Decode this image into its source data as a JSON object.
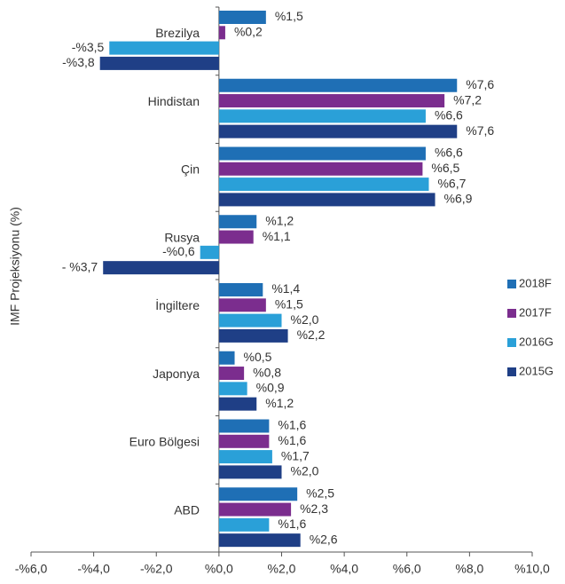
{
  "chart_data": {
    "type": "hbar",
    "y_axis_label": "IMF Projeksiyonu (%)",
    "categories": [
      "Brezilya",
      "Hindistan",
      "Çin",
      "Rusya",
      "İngiltere",
      "Japonya",
      "Euro Bölgesi",
      "ABD"
    ],
    "series": [
      {
        "name": "2018F",
        "color": "#1f6fb5",
        "values": [
          1.5,
          7.6,
          6.6,
          1.2,
          1.4,
          0.5,
          1.6,
          2.5
        ],
        "value_labels": [
          "%1,5",
          "%7,6",
          "%6,6",
          "%1,2",
          "%1,4",
          "%0,5",
          "%1,6",
          "%2,5"
        ]
      },
      {
        "name": "2017F",
        "color": "#7b2d8e",
        "values": [
          0.2,
          7.2,
          6.5,
          1.1,
          1.5,
          0.8,
          1.6,
          2.3
        ],
        "value_labels": [
          "%0,2",
          "%7,2",
          "%6,5",
          "%1,1",
          "%1,5",
          "%0,8",
          "%1,6",
          "%2,3"
        ]
      },
      {
        "name": "2016G",
        "color": "#2aa0d8",
        "values": [
          -3.5,
          6.6,
          6.7,
          -0.6,
          2.0,
          0.9,
          1.7,
          1.6
        ],
        "value_labels": [
          "-%3,5",
          "%6,6",
          "%6,7",
          "-%0,6",
          "%2,0",
          "%0,9",
          "%1,7",
          "%1,6"
        ]
      },
      {
        "name": "2015G",
        "color": "#1f3f86",
        "values": [
          -3.8,
          7.6,
          6.9,
          -3.7,
          2.2,
          1.2,
          2.0,
          2.6
        ],
        "value_labels": [
          "-%3,8",
          "%7,6",
          "%6,9",
          "- %3,7",
          "%2,2",
          "%1,2",
          "%2,0",
          "%2,6"
        ]
      }
    ],
    "xlim": [
      -6,
      10
    ],
    "xticks": [
      {
        "value": -6,
        "label": "-%6,0"
      },
      {
        "value": -4,
        "label": "-%4,0"
      },
      {
        "value": -2,
        "label": "-%2,0"
      },
      {
        "value": 0,
        "label": "%0,0"
      },
      {
        "value": 2,
        "label": "%2,0"
      },
      {
        "value": 4,
        "label": "%4,0"
      },
      {
        "value": 6,
        "label": "%6,0"
      },
      {
        "value": 8,
        "label": "%8,0"
      },
      {
        "value": 10,
        "label": "%10,0"
      }
    ],
    "legend": "right"
  }
}
